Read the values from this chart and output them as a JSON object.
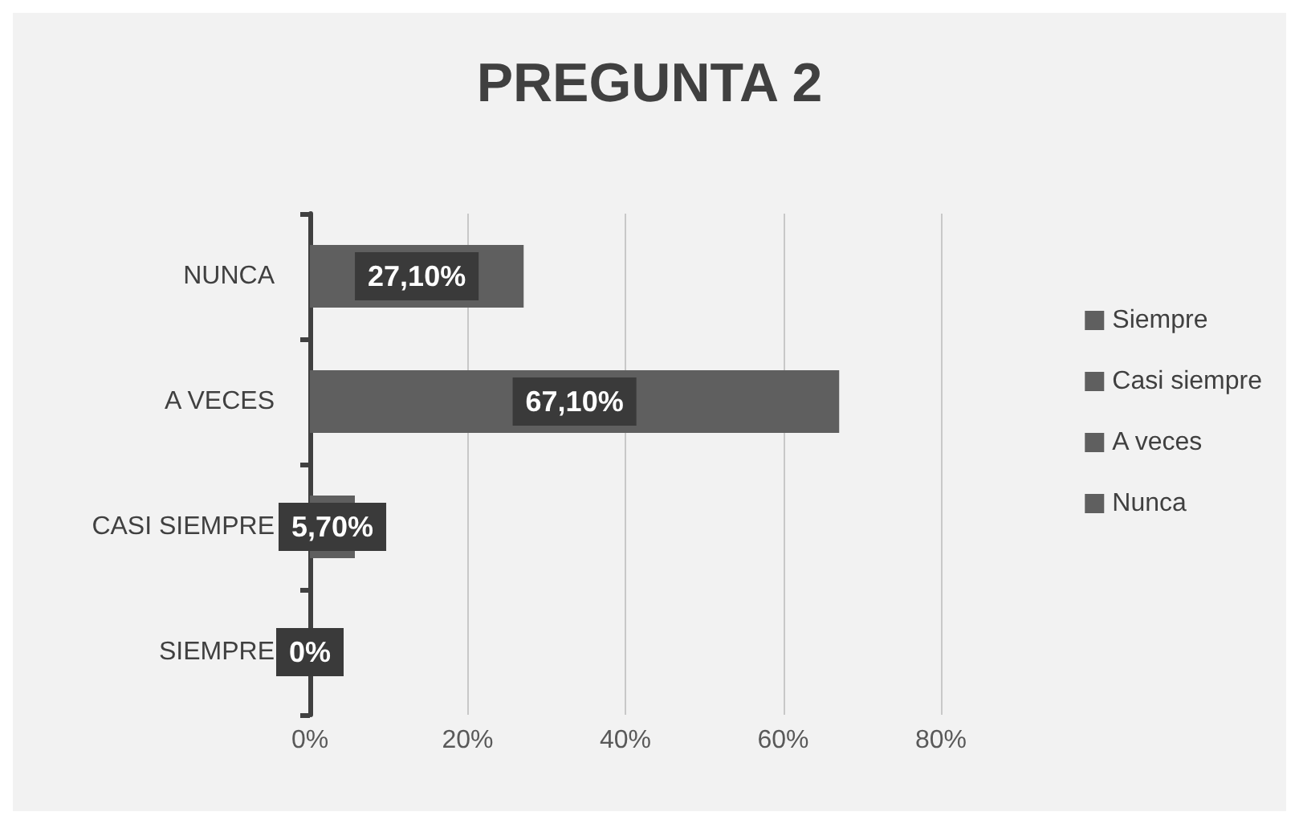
{
  "chart_data": {
    "type": "bar",
    "orientation": "horizontal",
    "stacked": true,
    "title": "PREGUNTA 2",
    "categories": [
      "NUNCA",
      "A VECES",
      "CASI SIEMPRE",
      "SIEMPRE"
    ],
    "series": [
      {
        "name": "Siempre",
        "color": "#5f5f5f",
        "values": [
          null,
          null,
          null,
          0
        ],
        "value_labels": [
          null,
          null,
          null,
          "0%"
        ]
      },
      {
        "name": "Casi siempre",
        "color": "#5f5f5f",
        "values": [
          null,
          null,
          5.7,
          null
        ],
        "value_labels": [
          null,
          null,
          "5,70%",
          null
        ]
      },
      {
        "name": "A veces",
        "color": "#5f5f5f",
        "values": [
          null,
          67.1,
          null,
          null
        ],
        "value_labels": [
          null,
          "67,10%",
          null,
          null
        ]
      },
      {
        "name": "Nunca",
        "color": "#5f5f5f",
        "values": [
          27.1,
          null,
          null,
          null
        ],
        "value_labels": [
          "27,10%",
          null,
          null,
          null
        ]
      }
    ],
    "xlim": [
      0,
      80
    ],
    "xticks": [
      {
        "value": 0,
        "label": "0%"
      },
      {
        "value": 20,
        "label": "20%"
      },
      {
        "value": 40,
        "label": "40%"
      },
      {
        "value": 60,
        "label": "60%"
      },
      {
        "value": 80,
        "label": "80%"
      }
    ],
    "grid": "x",
    "legend": "right"
  }
}
